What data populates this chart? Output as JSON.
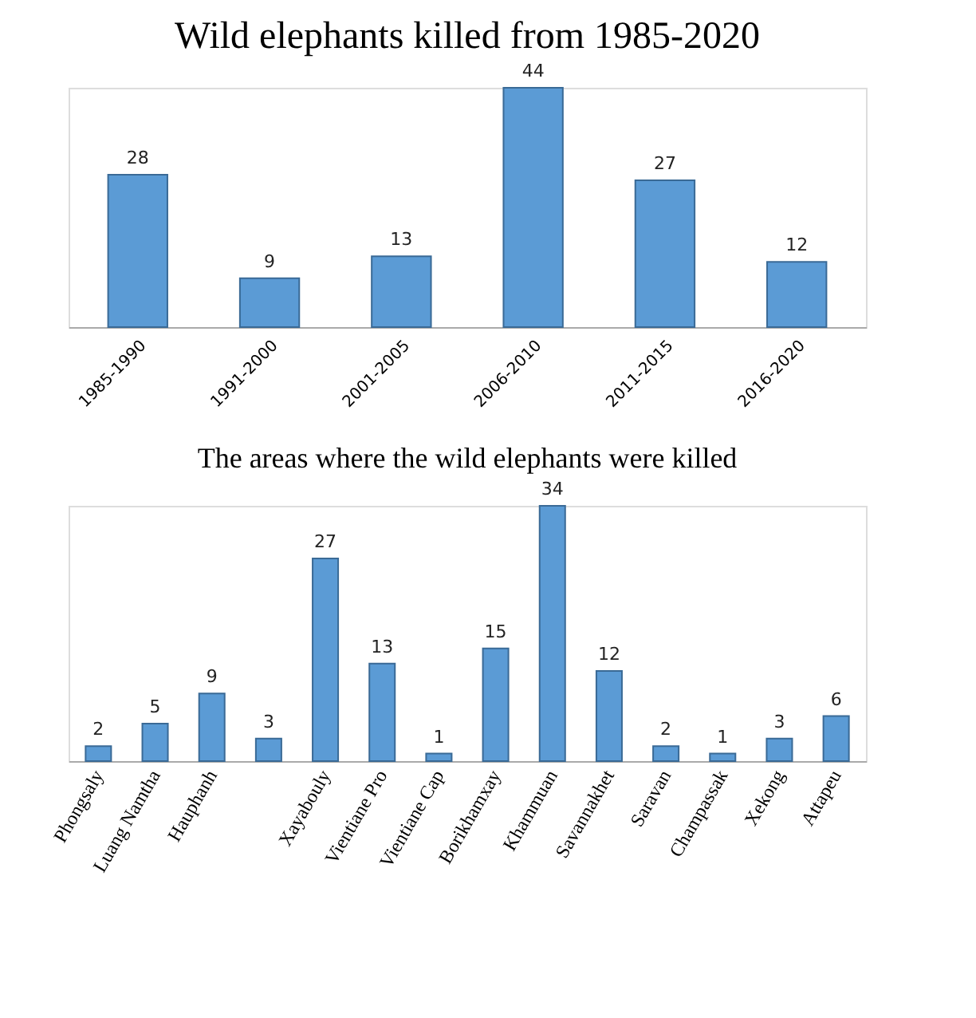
{
  "chart_data": [
    {
      "type": "bar",
      "title": "Wild elephants killed from 1985-2020",
      "categories": [
        "1985-1990",
        "1991-2000",
        "2001-2005",
        "2006-2010",
        "2011-2015",
        "2016-2020"
      ],
      "values": [
        28,
        9,
        13,
        44,
        27,
        12
      ],
      "color": "#5b9bd5",
      "data_labels": true
    },
    {
      "type": "bar",
      "title": "The areas where the wild elephants were killed",
      "categories": [
        "Phongsaly",
        "Luang Namtha",
        "Hauphanh",
        null,
        "Xayabouly",
        "Vientiane Pro",
        "Vientiane Cap",
        "Borikhamxay",
        "Khammuan",
        "Savannakhet",
        "Saravan",
        "Champassak",
        "Xekong",
        "Attapeu"
      ],
      "values": [
        2,
        5,
        9,
        3,
        27,
        13,
        1,
        15,
        34,
        12,
        2,
        1,
        3,
        6
      ],
      "color": "#5b9bd5",
      "data_labels": true
    }
  ]
}
